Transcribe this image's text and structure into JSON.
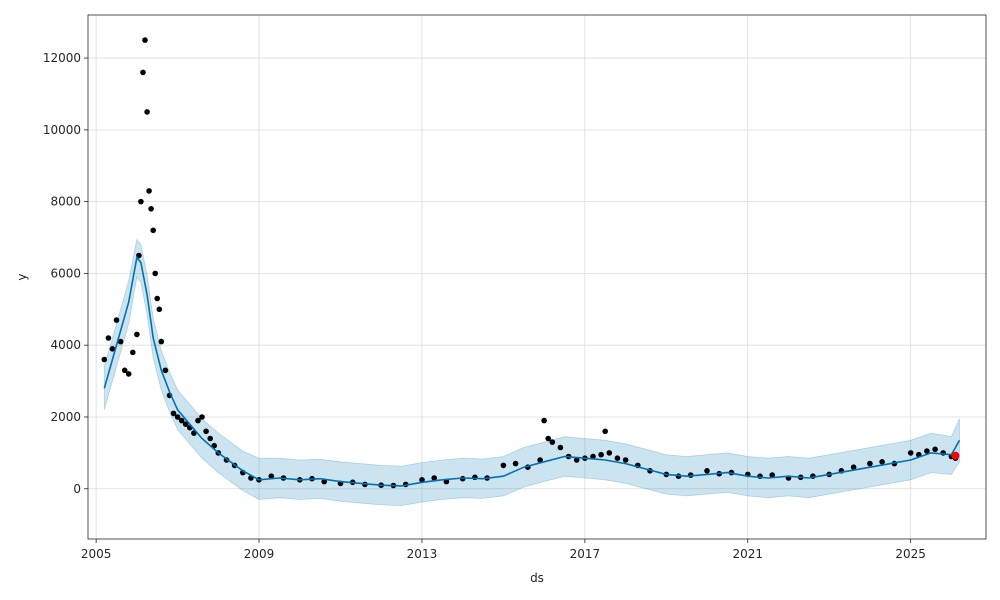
{
  "chart_data": {
    "type": "line",
    "title": "",
    "xlabel": "ds",
    "ylabel": "y",
    "xlim": [
      2004.8,
      2026.85
    ],
    "ylim": [
      -1400,
      13200
    ],
    "x_ticks": [
      2005,
      2009,
      2013,
      2017,
      2021,
      2025
    ],
    "x_tick_labels": [
      "2005",
      "2009",
      "2013",
      "2017",
      "2021",
      "2025"
    ],
    "y_ticks": [
      0,
      2000,
      4000,
      6000,
      8000,
      10000,
      12000
    ],
    "y_tick_labels": [
      "0",
      "2000",
      "4000",
      "6000",
      "8000",
      "10000",
      "12000"
    ],
    "grid": true,
    "colors": {
      "observed": "#000000",
      "forecast": "#0072B2",
      "interval": "#0072B2",
      "highlight": "#ff0000"
    },
    "series": [
      {
        "role": "forecast_yhat",
        "x": [
          2005.2,
          2005.5,
          2005.8,
          2006.0,
          2006.1,
          2006.25,
          2006.4,
          2006.6,
          2006.8,
          2007.0,
          2007.3,
          2007.6,
          2008.0,
          2008.3,
          2008.6,
          2009.0,
          2009.5,
          2010.0,
          2010.5,
          2011.0,
          2011.5,
          2012.0,
          2012.5,
          2013.0,
          2013.5,
          2014.0,
          2014.5,
          2015.0,
          2015.5,
          2016.0,
          2016.5,
          2017.0,
          2017.5,
          2018.0,
          2018.5,
          2019.0,
          2019.5,
          2020.0,
          2020.5,
          2021.0,
          2021.5,
          2022.0,
          2022.5,
          2023.0,
          2023.5,
          2024.0,
          2024.5,
          2025.0,
          2025.5,
          2026.0,
          2026.2
        ],
        "y": [
          2800,
          4000,
          5200,
          6450,
          6300,
          5400,
          4200,
          3300,
          2700,
          2200,
          1800,
          1400,
          1000,
          750,
          500,
          250,
          300,
          250,
          280,
          200,
          150,
          100,
          80,
          180,
          250,
          300,
          280,
          350,
          600,
          750,
          900,
          850,
          800,
          700,
          550,
          400,
          350,
          400,
          450,
          350,
          300,
          350,
          300,
          400,
          500,
          600,
          700,
          800,
          1000,
          950,
          1350
        ]
      },
      {
        "role": "interval_upper",
        "x": [
          2005.2,
          2005.5,
          2005.8,
          2006.0,
          2006.1,
          2006.25,
          2006.4,
          2006.6,
          2006.8,
          2007.0,
          2007.3,
          2007.6,
          2008.0,
          2008.3,
          2008.6,
          2009.0,
          2009.5,
          2010.0,
          2010.5,
          2011.0,
          2011.5,
          2012.0,
          2012.5,
          2013.0,
          2013.5,
          2014.0,
          2014.5,
          2015.0,
          2015.5,
          2016.0,
          2016.5,
          2017.0,
          2017.5,
          2018.0,
          2018.5,
          2019.0,
          2019.5,
          2020.0,
          2020.5,
          2021.0,
          2021.5,
          2022.0,
          2022.5,
          2023.0,
          2023.5,
          2024.0,
          2024.5,
          2025.0,
          2025.5,
          2026.0,
          2026.2
        ],
        "y": [
          3400,
          4600,
          5800,
          6950,
          6800,
          5950,
          4750,
          3850,
          3250,
          2750,
          2350,
          1950,
          1550,
          1300,
          1050,
          850,
          850,
          800,
          820,
          750,
          700,
          650,
          630,
          730,
          800,
          850,
          830,
          900,
          1150,
          1300,
          1450,
          1400,
          1350,
          1250,
          1100,
          950,
          900,
          950,
          1000,
          900,
          850,
          900,
          850,
          950,
          1050,
          1150,
          1250,
          1350,
          1550,
          1450,
          1950
        ]
      },
      {
        "role": "interval_lower",
        "x": [
          2005.2,
          2005.5,
          2005.8,
          2006.0,
          2006.1,
          2006.25,
          2006.4,
          2006.6,
          2006.8,
          2007.0,
          2007.3,
          2007.6,
          2008.0,
          2008.3,
          2008.6,
          2009.0,
          2009.5,
          2010.0,
          2010.5,
          2011.0,
          2011.5,
          2012.0,
          2012.5,
          2013.0,
          2013.5,
          2014.0,
          2014.5,
          2015.0,
          2015.5,
          2016.0,
          2016.5,
          2017.0,
          2017.5,
          2018.0,
          2018.5,
          2019.0,
          2019.5,
          2020.0,
          2020.5,
          2021.0,
          2021.5,
          2022.0,
          2022.5,
          2023.0,
          2023.5,
          2024.0,
          2024.5,
          2025.0,
          2025.5,
          2026.0,
          2026.2
        ],
        "y": [
          2200,
          3400,
          4600,
          5900,
          5750,
          4850,
          3650,
          2750,
          2150,
          1650,
          1250,
          850,
          450,
          200,
          -50,
          -300,
          -250,
          -300,
          -270,
          -350,
          -400,
          -450,
          -470,
          -370,
          -300,
          -250,
          -270,
          -200,
          50,
          200,
          350,
          300,
          250,
          150,
          0,
          -150,
          -200,
          -150,
          -100,
          -200,
          -250,
          -200,
          -250,
          -150,
          -50,
          50,
          150,
          250,
          450,
          400,
          750
        ]
      },
      {
        "role": "observed",
        "x": [
          2005.2,
          2005.3,
          2005.4,
          2005.5,
          2005.6,
          2005.7,
          2005.8,
          2005.9,
          2006.0,
          2006.05,
          2006.1,
          2006.15,
          2006.2,
          2006.25,
          2006.3,
          2006.35,
          2006.4,
          2006.45,
          2006.5,
          2006.55,
          2006.6,
          2006.7,
          2006.8,
          2006.9,
          2007.0,
          2007.1,
          2007.2,
          2007.3,
          2007.4,
          2007.5,
          2007.6,
          2007.7,
          2007.8,
          2007.9,
          2008.0,
          2008.2,
          2008.4,
          2008.6,
          2008.8,
          2009.0,
          2009.3,
          2009.6,
          2010.0,
          2010.3,
          2010.6,
          2011.0,
          2011.3,
          2011.6,
          2012.0,
          2012.3,
          2012.6,
          2013.0,
          2013.3,
          2013.6,
          2014.0,
          2014.3,
          2014.6,
          2015.0,
          2015.3,
          2015.6,
          2015.9,
          2016.0,
          2016.1,
          2016.2,
          2016.4,
          2016.6,
          2016.8,
          2017.0,
          2017.2,
          2017.4,
          2017.5,
          2017.6,
          2017.8,
          2018.0,
          2018.3,
          2018.6,
          2019.0,
          2019.3,
          2019.6,
          2020.0,
          2020.3,
          2020.6,
          2021.0,
          2021.3,
          2021.6,
          2022.0,
          2022.3,
          2022.6,
          2023.0,
          2023.3,
          2023.6,
          2024.0,
          2024.3,
          2024.6,
          2025.0,
          2025.2,
          2025.4,
          2025.6,
          2025.8,
          2026.0,
          2026.1
        ],
        "y": [
          3600,
          4200,
          3900,
          4700,
          4100,
          3300,
          3200,
          3800,
          4300,
          6500,
          8000,
          11600,
          12500,
          10500,
          8300,
          7800,
          7200,
          6000,
          5300,
          5000,
          4100,
          3300,
          2600,
          2100,
          2000,
          1900,
          1800,
          1700,
          1550,
          1900,
          2000,
          1600,
          1400,
          1200,
          1000,
          800,
          650,
          450,
          300,
          250,
          350,
          300,
          250,
          280,
          200,
          150,
          180,
          120,
          100,
          90,
          120,
          250,
          300,
          200,
          280,
          320,
          300,
          650,
          700,
          600,
          800,
          1900,
          1400,
          1300,
          1150,
          900,
          800,
          850,
          900,
          950,
          1600,
          1000,
          850,
          800,
          650,
          500,
          400,
          350,
          380,
          500,
          420,
          450,
          400,
          350,
          380,
          300,
          320,
          350,
          400,
          500,
          600,
          700,
          750,
          700,
          1000,
          950,
          1050,
          1100,
          1000,
          900,
          850
        ]
      },
      {
        "role": "highlight",
        "x": [
          2026.1
        ],
        "y": [
          920
        ]
      }
    ]
  }
}
